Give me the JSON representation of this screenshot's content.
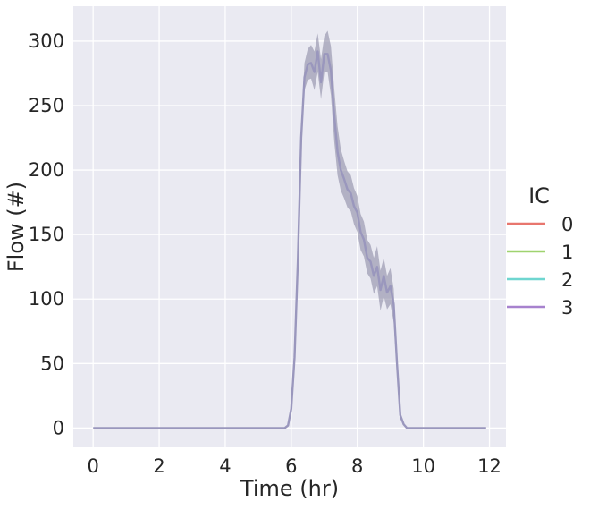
{
  "chart_data": {
    "type": "line",
    "title": "",
    "xlabel": "Time (hr)",
    "ylabel": "Flow (#)",
    "xlim": [
      -0.6,
      12.5
    ],
    "ylim": [
      -15,
      327
    ],
    "xticks": [
      0,
      2,
      4,
      6,
      8,
      10,
      12
    ],
    "yticks": [
      0,
      50,
      100,
      150,
      200,
      250,
      300
    ],
    "xtick_labels": [
      "0",
      "2",
      "4",
      "6",
      "8",
      "10",
      "12"
    ],
    "ytick_labels": [
      "0",
      "50",
      "100",
      "150",
      "200",
      "250",
      "300"
    ],
    "grid": true,
    "background": "#eaeaf2",
    "grid_color": "#ffffff",
    "legend": {
      "title": "IC",
      "placement": "right",
      "entries": [
        {
          "label": "0",
          "color": "#e8766e"
        },
        {
          "label": "1",
          "color": "#9fd36f"
        },
        {
          "label": "2",
          "color": "#6fd6d0"
        },
        {
          "label": "3",
          "color": "#a782ce"
        }
      ]
    },
    "mean_line_color": "#9a97bd",
    "band_color": "#7a7896",
    "series": [
      {
        "x": [
          0,
          1,
          2,
          3,
          4,
          5,
          5.8,
          5.9,
          6.0,
          6.1,
          6.2,
          6.3,
          6.4,
          6.5,
          6.6,
          6.7,
          6.8,
          6.9,
          7.0,
          7.1,
          7.2,
          7.3,
          7.4,
          7.5,
          7.6,
          7.7,
          7.8,
          7.9,
          8.0,
          8.1,
          8.2,
          8.3,
          8.4,
          8.5,
          8.6,
          8.7,
          8.8,
          8.9,
          9.0,
          9.1,
          9.2,
          9.3,
          9.4,
          9.5,
          9.6,
          9.7,
          9.8,
          10,
          11,
          11.9
        ],
        "mean": [
          0,
          0,
          0,
          0,
          0,
          0,
          0,
          2,
          15,
          55,
          130,
          225,
          272,
          282,
          283,
          276,
          292,
          268,
          290,
          290,
          277,
          242,
          214,
          200,
          193,
          185,
          182,
          172,
          167,
          152,
          146,
          132,
          129,
          118,
          125,
          107,
          118,
          105,
          110,
          96,
          50,
          10,
          3,
          0,
          0,
          0,
          0,
          0,
          0,
          0
        ],
        "lower": [
          0,
          0,
          0,
          0,
          0,
          0,
          0,
          1,
          12,
          48,
          120,
          212,
          262,
          270,
          271,
          262,
          276,
          255,
          276,
          276,
          258,
          222,
          196,
          184,
          178,
          171,
          168,
          158,
          152,
          138,
          133,
          120,
          116,
          104,
          110,
          91,
          102,
          92,
          96,
          82,
          42,
          7,
          2,
          0,
          0,
          0,
          0,
          0,
          0,
          0
        ],
        "upper": [
          0,
          0,
          0,
          0,
          0,
          0,
          0,
          3,
          18,
          62,
          140,
          236,
          283,
          294,
          297,
          292,
          306,
          286,
          304,
          308,
          296,
          263,
          234,
          216,
          207,
          199,
          196,
          186,
          180,
          166,
          160,
          146,
          142,
          132,
          141,
          122,
          132,
          118,
          124,
          108,
          56,
          12,
          4,
          0,
          0,
          0,
          0,
          0,
          0,
          0
        ]
      }
    ]
  }
}
